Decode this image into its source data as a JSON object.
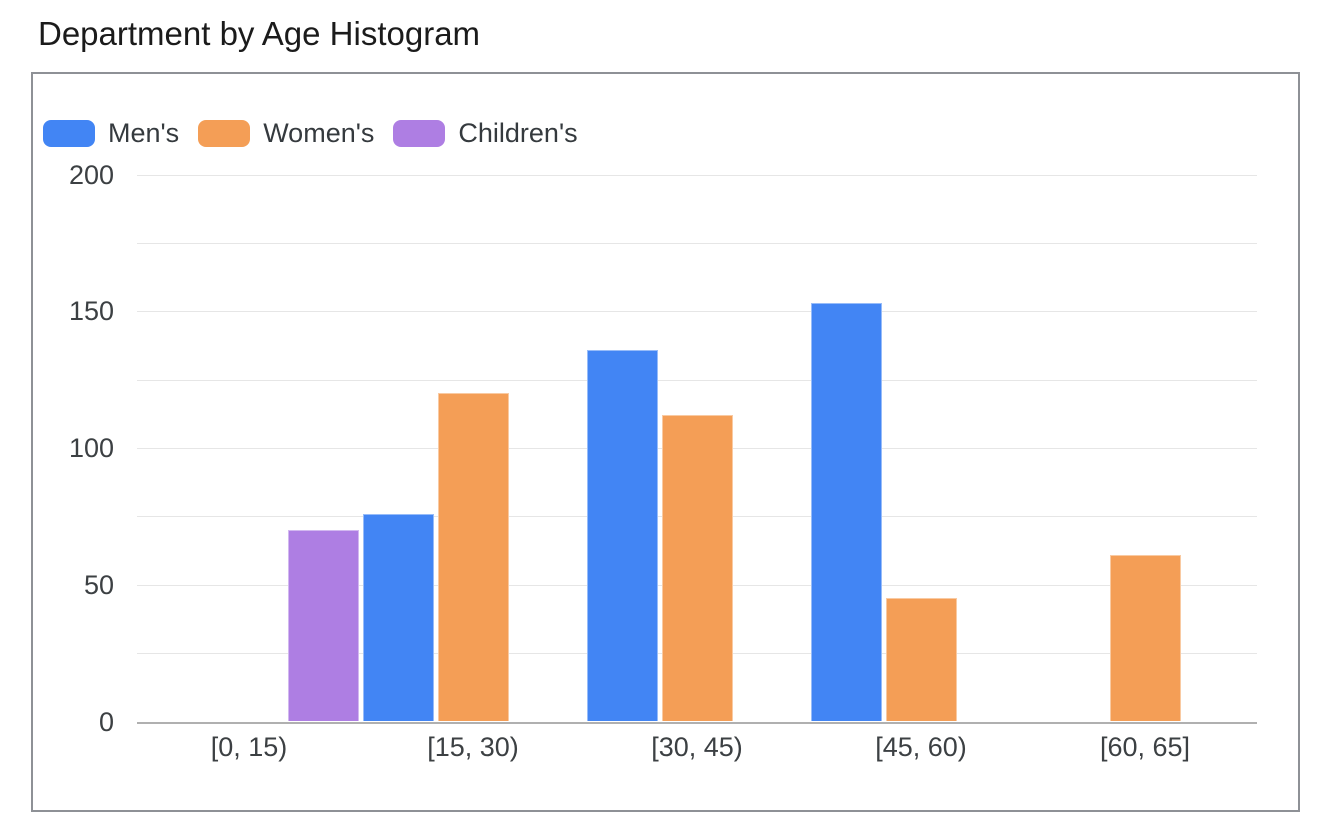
{
  "title": "Department by Age Histogram",
  "legend": {
    "items": [
      {
        "label": "Men's",
        "color": "#4285f4"
      },
      {
        "label": "Women's",
        "color": "#f49e56"
      },
      {
        "label": "Children's",
        "color": "#ae7ee3"
      }
    ]
  },
  "chart_data": {
    "type": "bar",
    "title": "Department by Age Histogram",
    "categories": [
      "[0, 15)",
      "[15, 30)",
      "[30, 45)",
      "[45, 60)",
      "[60, 65]"
    ],
    "series": [
      {
        "name": "Men's",
        "color": "#4285f4",
        "values": [
          0,
          76,
          136,
          153,
          0
        ]
      },
      {
        "name": "Women's",
        "color": "#f49e56",
        "values": [
          0,
          120,
          112,
          45,
          61
        ]
      },
      {
        "name": "Children's",
        "color": "#ae7ee3",
        "values": [
          70,
          0,
          0,
          0,
          0
        ]
      }
    ],
    "xlabel": "",
    "ylabel": "",
    "ylim": [
      0,
      200
    ],
    "y_major_ticks": [
      0,
      50,
      100,
      150,
      200
    ],
    "gridline_step": 25,
    "grid": true,
    "legend_position": "top-left",
    "bar_gap_note": "grouped per age bin, empty slots for zero values"
  }
}
